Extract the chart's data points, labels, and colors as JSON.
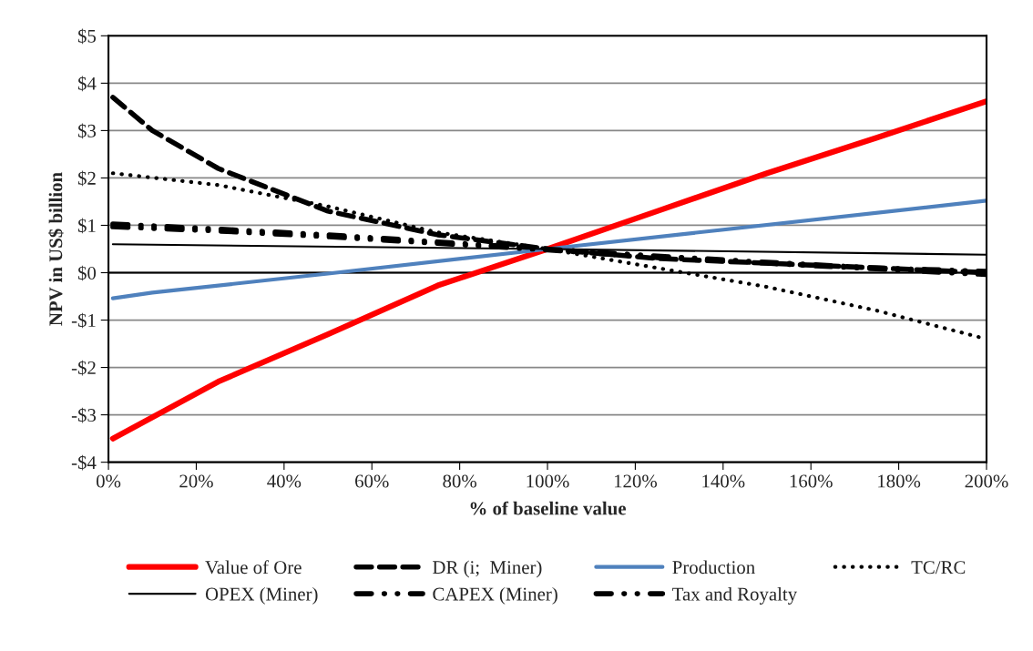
{
  "chart_data": {
    "type": "line",
    "xlabel": "% of baseline value",
    "ylabel": "NPV in US$ billion",
    "xlim": [
      0,
      200
    ],
    "ylim": [
      -4,
      5
    ],
    "xticks": [
      {
        "value": 0,
        "label": "0%"
      },
      {
        "value": 20,
        "label": "20%"
      },
      {
        "value": 40,
        "label": "40%"
      },
      {
        "value": 60,
        "label": "60%"
      },
      {
        "value": 80,
        "label": "80%"
      },
      {
        "value": 100,
        "label": "100%"
      },
      {
        "value": 120,
        "label": "120%"
      },
      {
        "value": 140,
        "label": "140%"
      },
      {
        "value": 160,
        "label": "160%"
      },
      {
        "value": 180,
        "label": "180%"
      },
      {
        "value": 200,
        "label": "200%"
      }
    ],
    "yticks": [
      {
        "value": -4,
        "label": "-$4"
      },
      {
        "value": -3,
        "label": "-$3"
      },
      {
        "value": -2,
        "label": "-$2"
      },
      {
        "value": -1,
        "label": "-$1"
      },
      {
        "value": 0,
        "label": "$0"
      },
      {
        "value": 1,
        "label": "$1"
      },
      {
        "value": 2,
        "label": "$2"
      },
      {
        "value": 3,
        "label": "$3"
      },
      {
        "value": 4,
        "label": "$4"
      },
      {
        "value": 5,
        "label": "$5"
      }
    ],
    "grid": "y",
    "legend": "bottom",
    "series": [
      {
        "name": "Value of Ore",
        "color": "#ff0000",
        "line_style": "solid",
        "x": [
          1,
          25,
          50,
          75,
          100,
          125,
          150,
          175,
          200
        ],
        "values": [
          -3.5,
          -2.3,
          -1.3,
          -0.27,
          0.5,
          1.3,
          2.1,
          2.85,
          3.62
        ]
      },
      {
        "name": "DR (i;  Miner)",
        "color": "#000000",
        "line_style": "dashed",
        "x": [
          1,
          10,
          25,
          50,
          75,
          100,
          125,
          150,
          175,
          200
        ],
        "values": [
          3.7,
          3.0,
          2.2,
          1.3,
          0.8,
          0.5,
          0.3,
          0.2,
          0.1,
          0.0
        ]
      },
      {
        "name": "Production",
        "color": "#4f81bd",
        "line_style": "solid",
        "x": [
          1,
          10,
          50,
          100,
          200
        ],
        "values": [
          -0.54,
          -0.42,
          -0.02,
          0.5,
          1.52
        ]
      },
      {
        "name": "TC/RC",
        "color": "#000000",
        "line_style": "dotted",
        "x": [
          1,
          25,
          50,
          75,
          100,
          125,
          150,
          175,
          200
        ],
        "values": [
          2.1,
          1.85,
          1.4,
          0.85,
          0.5,
          0.1,
          -0.3,
          -0.8,
          -1.4
        ]
      },
      {
        "name": "OPEX (Miner)",
        "color": "#000000",
        "line_style": "solid",
        "x": [
          1,
          100,
          200
        ],
        "values": [
          0.6,
          0.5,
          0.38
        ]
      },
      {
        "name": "CAPEX (Miner)",
        "color": "#000000",
        "line_style": "dashdot",
        "x": [
          1,
          25,
          50,
          75,
          100,
          125,
          150,
          175,
          200
        ],
        "values": [
          1.03,
          0.92,
          0.8,
          0.65,
          0.5,
          0.35,
          0.22,
          0.1,
          0.03
        ]
      },
      {
        "name": "Tax and Royalty",
        "color": "#000000",
        "line_style": "dashdot",
        "x": [
          1,
          25,
          50,
          75,
          100,
          125,
          150,
          175,
          200
        ],
        "values": [
          0.97,
          0.88,
          0.76,
          0.62,
          0.48,
          0.32,
          0.2,
          0.08,
          -0.04
        ]
      }
    ]
  }
}
